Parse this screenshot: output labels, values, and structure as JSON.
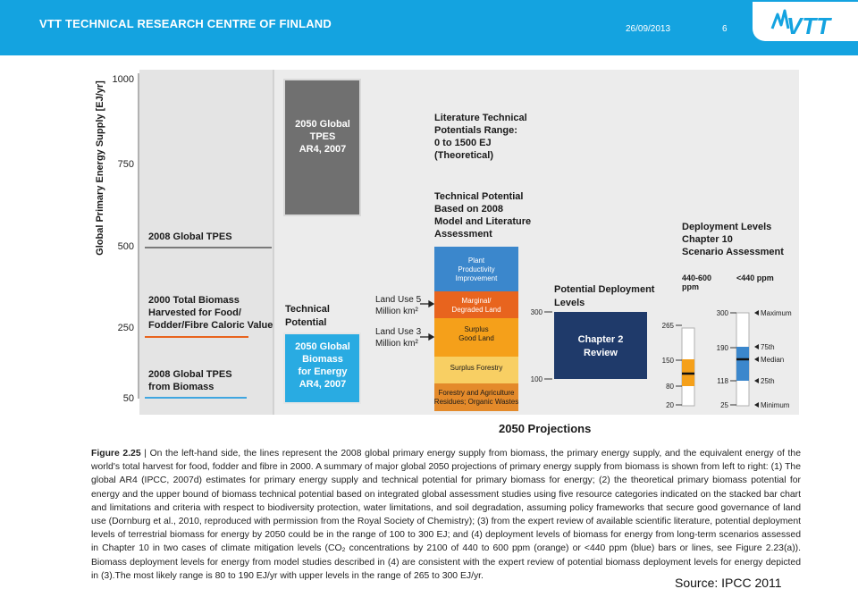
{
  "header": {
    "title": "VTT TECHNICAL RESEARCH CENTRE OF FINLAND",
    "date": "26/09/2013",
    "page_number": "6",
    "logo_text": "VTT",
    "background_color": "#14a3e0"
  },
  "figure": {
    "y_axis_label": "Global Primary Energy Supply [EJ/yr]",
    "y_ticks": [
      "1000",
      "750",
      "500",
      "250",
      "50"
    ],
    "x_label": "2050 Projections",
    "left_panel": {
      "tpes_2008": "2008 Global TPES",
      "biomass_2000": [
        "2000 Total Biomass",
        "Harvested for Food/",
        "Fodder/Fibre Caloric Value"
      ],
      "tpes_biomass_2008": [
        "2008 Global TPES",
        "from Biomass"
      ]
    },
    "ar4_tpes_box": [
      "2050 Global",
      "TPES",
      "AR4, 2007"
    ],
    "technical_potential_label": [
      "Technical",
      "Potential"
    ],
    "ar4_biomass_box": [
      "2050 Global",
      "Biomass",
      "for Energy",
      "AR4, 2007"
    ],
    "land_use_5": [
      "Land Use 5",
      "Million km²"
    ],
    "land_use_3": [
      "Land Use 3",
      "Million km²"
    ],
    "literature_range": [
      "Literature Technical",
      "Potentials Range:",
      "0 to 1500 EJ",
      "(Theoretical)"
    ],
    "technical_potential_2008": [
      "Technical Potential",
      "Based on 2008",
      "Model and Literature",
      "Assessment"
    ],
    "stack_segments": [
      {
        "label": [
          "Plant",
          "Productivity",
          "Improvement"
        ],
        "color": "#3b87cc"
      },
      {
        "label": [
          "Marginal/",
          "Degraded Land"
        ],
        "color": "#e8641e"
      },
      {
        "label": [
          "Surplus",
          "Good Land"
        ],
        "color": "#f5a01a"
      },
      {
        "label": [
          "Surplus Forestry"
        ],
        "color": "#f8cf63"
      },
      {
        "label": [
          "Forestry and Agriculture",
          "Residues; Organic Wastes"
        ],
        "color": "#e48a2a"
      }
    ],
    "potential_deployment": {
      "title": [
        "Potential Deployment",
        "Levels"
      ],
      "box_label": [
        "Chapter 2",
        "Review"
      ],
      "upper_tick": "300",
      "lower_tick": "100"
    },
    "deployment_levels_title": [
      "Deployment Levels",
      "Chapter 10",
      "Scenario Assessment"
    ],
    "bar_440_600": {
      "label": [
        "440-600",
        "ppm"
      ],
      "ticks": [
        "265",
        "150",
        "80",
        "20"
      ],
      "color": "#f5a01a"
    },
    "bar_below_440": {
      "label": "<440 ppm",
      "ticks": [
        "300",
        "190",
        "118",
        "25"
      ],
      "color": "#3b87cc"
    },
    "legend": [
      "Maximum",
      "75th",
      "Median",
      "25th",
      "Minimum"
    ]
  },
  "caption": {
    "figure_label": "Figure 2.25",
    "text": "On the left-hand side, the lines represent the 2008 global primary energy supply from biomass, the primary energy supply, and the equivalent energy of the world's total harvest for food, fodder and fibre in 2000. A summary of major global 2050 projections of primary energy supply from biomass is shown from left to right: (1) The global AR4 (IPCC, 2007d) estimates for primary energy supply and technical potential for primary biomass for energy; (2) the theoretical primary biomass potential for energy and the upper bound of biomass technical potential based on integrated global assessment studies using five resource categories indicated on the stacked bar chart and limitations and criteria with respect to biodiversity protection, water limitations, and soil degradation, assuming policy frameworks that secure good governance of land use (Dornburg et al., 2010, reproduced with permission from the Royal Society of Chemistry); (3) from the expert review of available scientific literature, potential deployment levels of terrestrial biomass for energy by 2050 could be in the range of 100 to 300 EJ; and (4) deployment levels of biomass for energy from long-term scenarios assessed in Chapter 10 in two cases of climate mitigation levels (CO₂ concentrations by 2100 of 440 to 600 ppm (orange) or <440 ppm (blue) bars or lines, see Figure 2.23(a)). Biomass deployment levels for energy from model studies described in (4) are consistent with the expert review of potential biomass deployment levels for energy depicted in (3).The most likely range is 80 to 190 EJ/yr with upper levels in the range of 265 to 300 EJ/yr."
  },
  "source": "Source: IPCC 2011"
}
